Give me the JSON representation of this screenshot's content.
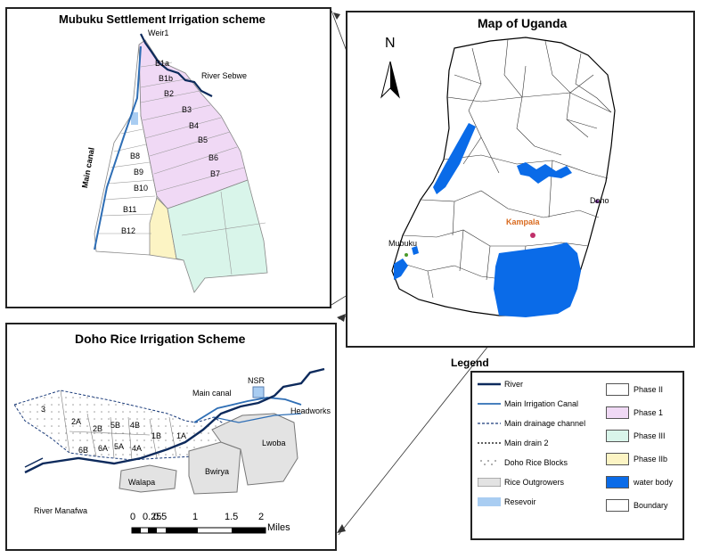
{
  "mubuku": {
    "title": "Mubuku Settlement Irrigation scheme",
    "weir": "Weir1",
    "river": "River Sebwe",
    "canal": "Main canal",
    "blocks_phase1": [
      "B1a",
      "B1b",
      "B2",
      "B3",
      "B4",
      "B5",
      "B6",
      "B7"
    ],
    "blocks_phase2": [
      "B8",
      "B9",
      "B10",
      "B11",
      "B12"
    ]
  },
  "uganda": {
    "title": "Map of Uganda",
    "north": "N",
    "cities": [
      "Doho",
      "Kampala",
      "Mubuku"
    ]
  },
  "doho": {
    "title": "Doho Rice Irrigation Scheme",
    "nsr": "NSR",
    "canal": "Main canal",
    "headworks": "Headworks",
    "river": "River Manafwa",
    "blocks": [
      "3",
      "2A",
      "2B",
      "5B",
      "4B",
      "1B",
      "1A",
      "6B",
      "6A",
      "5A",
      "4A"
    ],
    "outgrowers": [
      "Walapa",
      "Bwirya",
      "Lwoba"
    ],
    "scale_ticks": [
      "0",
      "0.25",
      "0.5",
      "1",
      "1.5",
      "2"
    ],
    "scale_unit": "Miles"
  },
  "legend": {
    "title": "Legend",
    "left": [
      {
        "label": "River",
        "style": "river"
      },
      {
        "label": "Main Irrigation Canal",
        "style": "canal"
      },
      {
        "label": "Main drainage channel",
        "style": "drainage"
      },
      {
        "label": "Main drain 2",
        "style": "drain2"
      },
      {
        "label": "Doho Rice Blocks",
        "style": "dots"
      },
      {
        "label": "Rice Outgrowers",
        "style": "grey"
      },
      {
        "label": "Resevoir",
        "style": "reservoir"
      }
    ],
    "right": [
      {
        "label": "Phase II",
        "color": "#ffffff"
      },
      {
        "label": "Phase 1",
        "color": "#f0d9f5"
      },
      {
        "label": "Phase III",
        "color": "#d9f5ea"
      },
      {
        "label": "Phase IIb",
        "color": "#fcf4c4"
      },
      {
        "label": "water body",
        "color": "#0a6be8"
      },
      {
        "label": "Boundary",
        "color": "#ffffff"
      }
    ]
  },
  "colors": {
    "water": "#0a6be8",
    "phase1": "#f0d9f5",
    "phase3": "#d9f5ea",
    "phase2b": "#fcf4c4",
    "outgrowers": "#e3e3e3",
    "reservoir": "#a9cdf2",
    "canal": "#2e6eb5",
    "river": "#0d2a5c"
  }
}
